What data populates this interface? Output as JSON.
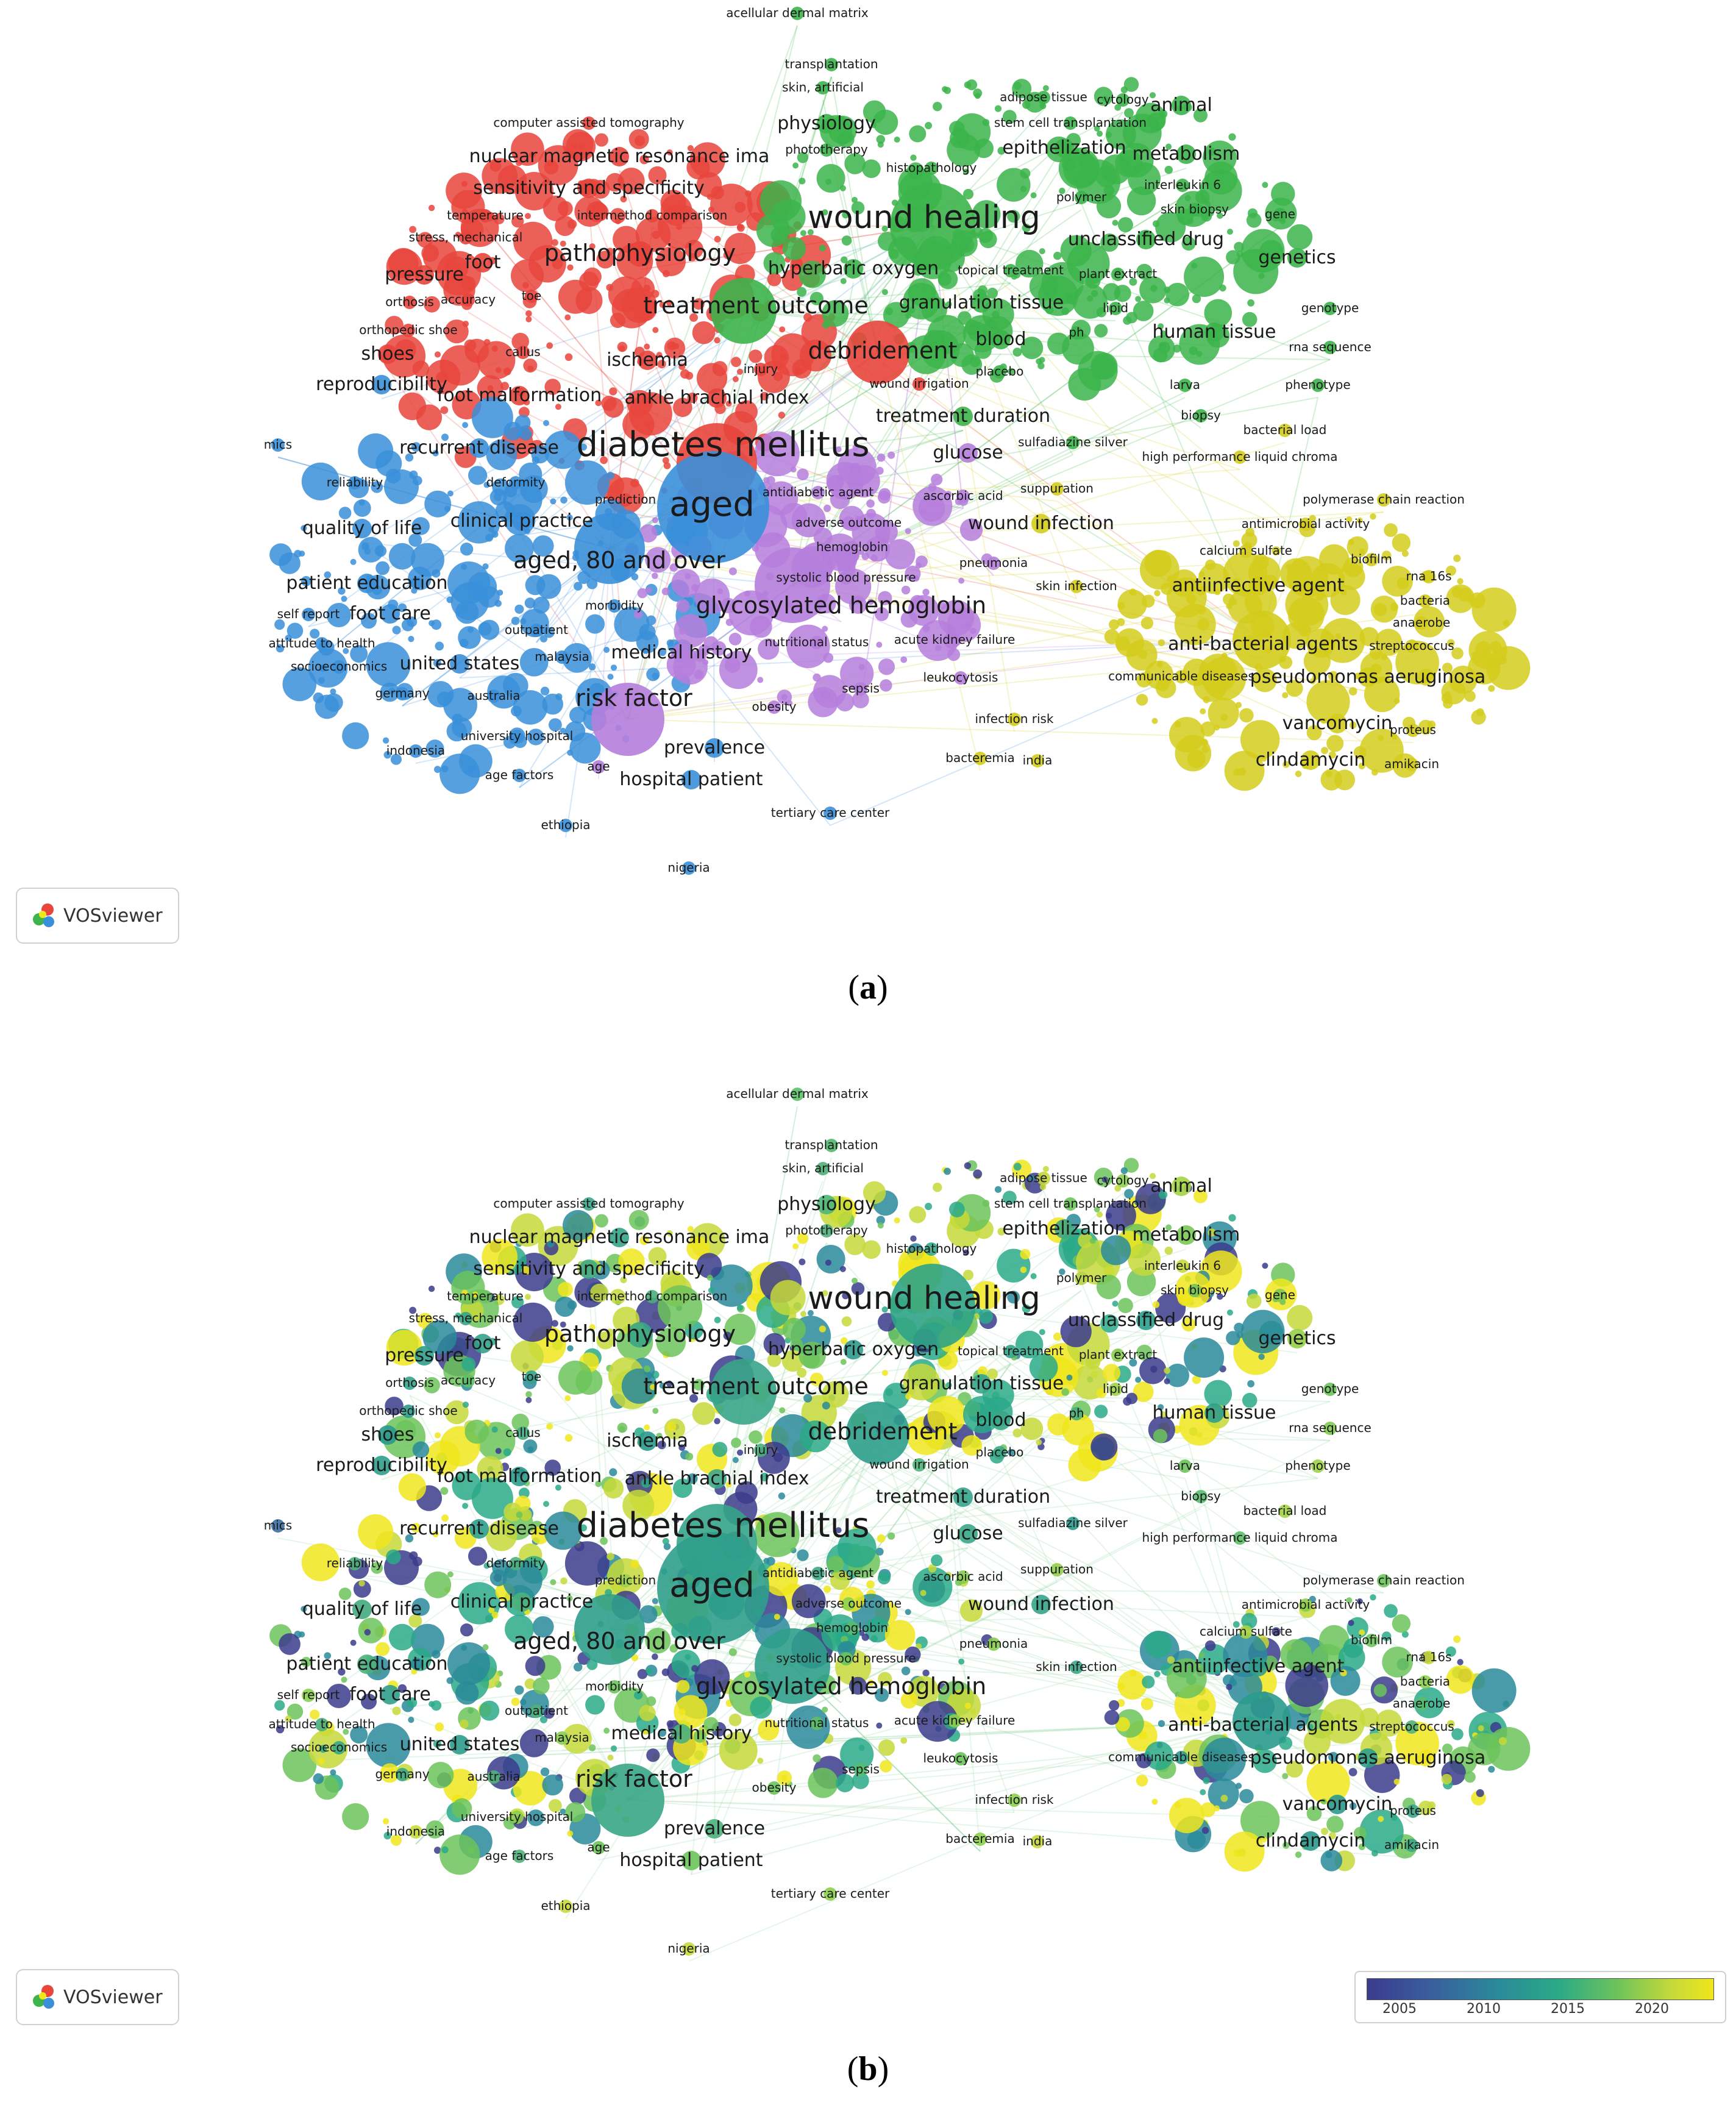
{
  "panel_a": {
    "caption_letter": "a",
    "logo_label": "VOSviewer",
    "cluster_colors": {
      "red": "#e8453c",
      "green": "#3cb44b",
      "blue": "#3a8fd9",
      "yellow": "#d4cc1c",
      "purple": "#b57edc"
    }
  },
  "panel_b": {
    "caption_letter": "b",
    "logo_label": "VOSviewer",
    "legend": {
      "ticks": [
        "2005",
        "2010",
        "2015",
        "2020"
      ],
      "colors": [
        "#3b3b8c",
        "#2a8a9a",
        "#2aa988",
        "#6cc35b",
        "#c6d93a",
        "#f0e61c"
      ]
    }
  },
  "keywords": [
    {
      "label": "acellular dermal matrix",
      "cluster": "green",
      "size": 1,
      "year_color": "#5cc26a"
    },
    {
      "label": "transplantation",
      "cluster": "green",
      "size": 1,
      "year_color": "#52b86e"
    },
    {
      "label": "skin, artificial",
      "cluster": "green",
      "size": 1,
      "year_color": "#4fae72"
    },
    {
      "label": "adipose tissue",
      "cluster": "green",
      "size": 1,
      "year_color": "#c3d73a"
    },
    {
      "label": "cytology",
      "cluster": "green",
      "size": 1,
      "year_color": "#8ccf4f"
    },
    {
      "label": "animal",
      "cluster": "green",
      "size": 2,
      "year_color": "#a4d444"
    },
    {
      "label": "computer assisted tomography",
      "cluster": "red",
      "size": 1,
      "year_color": "#3aa68a"
    },
    {
      "label": "physiology",
      "cluster": "green",
      "size": 2,
      "year_color": "#4db67a"
    },
    {
      "label": "stem cell transplantation",
      "cluster": "green",
      "size": 1,
      "year_color": "#6cc35b"
    },
    {
      "label": "phototherapy",
      "cluster": "green",
      "size": 1,
      "year_color": "#4cb07a"
    },
    {
      "label": "epithelization",
      "cluster": "green",
      "size": 2,
      "year_color": "#3fa782"
    },
    {
      "label": "metabolism",
      "cluster": "green",
      "size": 2,
      "year_color": "#79c656"
    },
    {
      "label": "nuclear magnetic resonance ima",
      "cluster": "red",
      "size": 2,
      "year_color": "#35a38a"
    },
    {
      "label": "histopathology",
      "cluster": "green",
      "size": 1,
      "year_color": "#3aa686"
    },
    {
      "label": "interleukin 6",
      "cluster": "green",
      "size": 1,
      "year_color": "#c6d93a"
    },
    {
      "label": "sensitivity and specificity",
      "cluster": "red",
      "size": 2,
      "year_color": "#3ea884"
    },
    {
      "label": "polymer",
      "cluster": "green",
      "size": 1,
      "year_color": "#b5d340"
    },
    {
      "label": "skin biopsy",
      "cluster": "green",
      "size": 1,
      "year_color": "#72c458"
    },
    {
      "label": "temperature",
      "cluster": "red",
      "size": 1,
      "year_color": "#6cc35b"
    },
    {
      "label": "intermethod comparison",
      "cluster": "red",
      "size": 1,
      "year_color": "#4aae7c"
    },
    {
      "label": "gene",
      "cluster": "green",
      "size": 1,
      "year_color": "#7fc852"
    },
    {
      "label": "wound healing",
      "cluster": "green",
      "size": 4,
      "year_color": "#2fa386"
    },
    {
      "label": "stress, mechanical",
      "cluster": "red",
      "size": 1,
      "year_color": "#37a488"
    },
    {
      "label": "unclassified drug",
      "cluster": "green",
      "size": 2,
      "year_color": "#2c9d8c"
    },
    {
      "label": "foot",
      "cluster": "red",
      "size": 2,
      "year_color": "#33a28a"
    },
    {
      "label": "pathophysiology",
      "cluster": "red",
      "size": 3,
      "year_color": "#3aa686"
    },
    {
      "label": "genetics",
      "cluster": "green",
      "size": 2,
      "year_color": "#96d049"
    },
    {
      "label": "pressure",
      "cluster": "red",
      "size": 2,
      "year_color": "#2f9f8b"
    },
    {
      "label": "hyperbaric oxygen",
      "cluster": "green",
      "size": 2,
      "year_color": "#2b9a8d"
    },
    {
      "label": "topical treatment",
      "cluster": "green",
      "size": 1,
      "year_color": "#34a389"
    },
    {
      "label": "plant extract",
      "cluster": "green",
      "size": 1,
      "year_color": "#8dcd4e"
    },
    {
      "label": "orthosis",
      "cluster": "red",
      "size": 1,
      "year_color": "#36a389"
    },
    {
      "label": "accuracy",
      "cluster": "red",
      "size": 1,
      "year_color": "#5fbf66"
    },
    {
      "label": "toe",
      "cluster": "red",
      "size": 1,
      "year_color": "#34a28a"
    },
    {
      "label": "treatment outcome",
      "cluster": "green",
      "size": 3,
      "year_color": "#38a588"
    },
    {
      "label": "granulation tissue",
      "cluster": "green",
      "size": 2,
      "year_color": "#37a489"
    },
    {
      "label": "lipid",
      "cluster": "green",
      "size": 1,
      "year_color": "#9dd147"
    },
    {
      "label": "genotype",
      "cluster": "green",
      "size": 1,
      "year_color": "#6cc35b"
    },
    {
      "label": "orthopedic shoe",
      "cluster": "red",
      "size": 1,
      "year_color": "#2d9c8c"
    },
    {
      "label": "blood",
      "cluster": "green",
      "size": 2,
      "year_color": "#3aa686"
    },
    {
      "label": "ph",
      "cluster": "green",
      "size": 1,
      "year_color": "#48ad7e"
    },
    {
      "label": "human tissue",
      "cluster": "green",
      "size": 2,
      "year_color": "#2e9f8b"
    },
    {
      "label": "rna sequence",
      "cluster": "green",
      "size": 1,
      "year_color": "#83ca51"
    },
    {
      "label": "shoes",
      "cluster": "red",
      "size": 2,
      "year_color": "#2a998e"
    },
    {
      "label": "callus",
      "cluster": "red",
      "size": 1,
      "year_color": "#41aa82"
    },
    {
      "label": "ischemia",
      "cluster": "red",
      "size": 2,
      "year_color": "#2b9b8d"
    },
    {
      "label": "debridement",
      "cluster": "red",
      "size": 3,
      "year_color": "#2e9e8b"
    },
    {
      "label": "injury",
      "cluster": "red",
      "size": 1,
      "year_color": "#4ab07c"
    },
    {
      "label": "placebo",
      "cluster": "green",
      "size": 1,
      "year_color": "#3aa686"
    },
    {
      "label": "reproducibility",
      "cluster": "blue",
      "size": 2,
      "year_color": "#2f9f8b"
    },
    {
      "label": "larva",
      "cluster": "green",
      "size": 1,
      "year_color": "#6cc35b"
    },
    {
      "label": "phenotype",
      "cluster": "green",
      "size": 1,
      "year_color": "#9dd147"
    },
    {
      "label": "foot malformation",
      "cluster": "red",
      "size": 2,
      "year_color": "#2c9c8c"
    },
    {
      "label": "wound irrigation",
      "cluster": "red",
      "size": 1,
      "year_color": "#4fb27a"
    },
    {
      "label": "ankle brachial index",
      "cluster": "red",
      "size": 2,
      "year_color": "#3ea884"
    },
    {
      "label": "biopsy",
      "cluster": "green",
      "size": 1,
      "year_color": "#58bc6e"
    },
    {
      "label": "treatment duration",
      "cluster": "green",
      "size": 2,
      "year_color": "#36a489"
    },
    {
      "label": "bacterial load",
      "cluster": "yellow",
      "size": 1,
      "year_color": "#a4d444"
    },
    {
      "label": "mics",
      "cluster": "blue",
      "size": 1,
      "year_color": "#3a6ea0"
    },
    {
      "label": "recurrent disease",
      "cluster": "blue",
      "size": 2,
      "year_color": "#2e9e8b"
    },
    {
      "label": "sulfadiazine silver",
      "cluster": "green",
      "size": 1,
      "year_color": "#2c9a8d"
    },
    {
      "label": "diabetes mellitus",
      "cluster": "red",
      "size": 5,
      "year_color": "#36a489"
    },
    {
      "label": "glucose",
      "cluster": "purple",
      "size": 2,
      "year_color": "#3aa686"
    },
    {
      "label": "high performance liquid chroma",
      "cluster": "yellow",
      "size": 1,
      "year_color": "#5cbf68"
    },
    {
      "label": "deformity",
      "cluster": "blue",
      "size": 1,
      "year_color": "#4cb07c"
    },
    {
      "label": "reliability",
      "cluster": "blue",
      "size": 1,
      "year_color": "#4fb27a"
    },
    {
      "label": "antidiabetic agent",
      "cluster": "purple",
      "size": 1,
      "year_color": "#3ba686"
    },
    {
      "label": "ascorbic acid",
      "cluster": "purple",
      "size": 1,
      "year_color": "#86cb50"
    },
    {
      "label": "suppuration",
      "cluster": "yellow",
      "size": 1,
      "year_color": "#93cf4b"
    },
    {
      "label": "prediction",
      "cluster": "red",
      "size": 1,
      "year_color": "#9dd147"
    },
    {
      "label": "aged",
      "cluster": "blue",
      "size": 5,
      "year_color": "#2f9f8b"
    },
    {
      "label": "polymerase chain reaction",
      "cluster": "yellow",
      "size": 1,
      "year_color": "#6cc35b"
    },
    {
      "label": "clinical practice",
      "cluster": "blue",
      "size": 2,
      "year_color": "#4ab07c"
    },
    {
      "label": "adverse outcome",
      "cluster": "purple",
      "size": 1,
      "year_color": "#8ccf4f"
    },
    {
      "label": "quality of life",
      "cluster": "blue",
      "size": 2,
      "year_color": "#42ab80"
    },
    {
      "label": "wound infection",
      "cluster": "yellow",
      "size": 2,
      "year_color": "#36a489"
    },
    {
      "label": "antimicrobial activity",
      "cluster": "yellow",
      "size": 1,
      "year_color": "#8dcd4e"
    },
    {
      "label": "hemoglobin",
      "cluster": "purple",
      "size": 1,
      "year_color": "#58bc6e"
    },
    {
      "label": "calcium sulfate",
      "cluster": "yellow",
      "size": 1,
      "year_color": "#a9d543"
    },
    {
      "label": "biofilm",
      "cluster": "yellow",
      "size": 1,
      "year_color": "#6cc35b"
    },
    {
      "label": "aged, 80 and over",
      "cluster": "blue",
      "size": 3,
      "year_color": "#2f9f8b"
    },
    {
      "label": "pneumonia",
      "cluster": "purple",
      "size": 1,
      "year_color": "#86cb50"
    },
    {
      "label": "rna 16s",
      "cluster": "yellow",
      "size": 1,
      "year_color": "#c6d93a"
    },
    {
      "label": "patient education",
      "cluster": "blue",
      "size": 2,
      "year_color": "#4cb07c"
    },
    {
      "label": "systolic blood pressure",
      "cluster": "purple",
      "size": 1,
      "year_color": "#6cc35b"
    },
    {
      "label": "skin infection",
      "cluster": "yellow",
      "size": 1,
      "year_color": "#3ba686"
    },
    {
      "label": "antiinfective agent",
      "cluster": "yellow",
      "size": 2,
      "year_color": "#2f9f8b"
    },
    {
      "label": "bacteria",
      "cluster": "yellow",
      "size": 1,
      "year_color": "#8ccf4f"
    },
    {
      "label": "morbidity",
      "cluster": "blue",
      "size": 1,
      "year_color": "#6cc35b"
    },
    {
      "label": "self report",
      "cluster": "blue",
      "size": 1,
      "year_color": "#8ccf4f"
    },
    {
      "label": "foot care",
      "cluster": "blue",
      "size": 2,
      "year_color": "#2f9f8b"
    },
    {
      "label": "glycosylated hemoglobin",
      "cluster": "purple",
      "size": 3,
      "year_color": "#2f9f8b"
    },
    {
      "label": "anaerobe",
      "cluster": "yellow",
      "size": 1,
      "year_color": "#58bc6e"
    },
    {
      "label": "outpatient",
      "cluster": "blue",
      "size": 1,
      "year_color": "#4fb27a"
    },
    {
      "label": "acute kidney failure",
      "cluster": "purple",
      "size": 1,
      "year_color": "#8ccf4f"
    },
    {
      "label": "attitude to health",
      "cluster": "blue",
      "size": 1,
      "year_color": "#48ad7e"
    },
    {
      "label": "nutritional status",
      "cluster": "purple",
      "size": 1,
      "year_color": "#5fbf66"
    },
    {
      "label": "anti-bacterial agents",
      "cluster": "yellow",
      "size": 2,
      "year_color": "#2b9b8d"
    },
    {
      "label": "streptococcus",
      "cluster": "yellow",
      "size": 1,
      "year_color": "#4fb27a"
    },
    {
      "label": "malaysia",
      "cluster": "blue",
      "size": 1,
      "year_color": "#8ccf4f"
    },
    {
      "label": "medical history",
      "cluster": "purple",
      "size": 2,
      "year_color": "#4cb07c"
    },
    {
      "label": "united states",
      "cluster": "blue",
      "size": 2,
      "year_color": "#2c9c8c"
    },
    {
      "label": "socioeconomics",
      "cluster": "blue",
      "size": 1,
      "year_color": "#3aa686"
    },
    {
      "label": "communicable diseases",
      "cluster": "yellow",
      "size": 1,
      "year_color": "#2b9b8d"
    },
    {
      "label": "pseudomonas aeruginosa",
      "cluster": "yellow",
      "size": 2,
      "year_color": "#2f9f8b"
    },
    {
      "label": "leukocytosis",
      "cluster": "purple",
      "size": 1,
      "year_color": "#6cc35b"
    },
    {
      "label": "sepsis",
      "cluster": "purple",
      "size": 1,
      "year_color": "#58bc6e"
    },
    {
      "label": "germany",
      "cluster": "blue",
      "size": 1,
      "year_color": "#3aa686"
    },
    {
      "label": "australia",
      "cluster": "blue",
      "size": 1,
      "year_color": "#4fb27a"
    },
    {
      "label": "risk factor",
      "cluster": "purple",
      "size": 3,
      "year_color": "#3aa686"
    },
    {
      "label": "obesity",
      "cluster": "purple",
      "size": 1,
      "year_color": "#6cc35b"
    },
    {
      "label": "infection risk",
      "cluster": "yellow",
      "size": 1,
      "year_color": "#8ccf4f"
    },
    {
      "label": "vancomycin",
      "cluster": "yellow",
      "size": 2,
      "year_color": "#2a998e"
    },
    {
      "label": "proteus",
      "cluster": "yellow",
      "size": 1,
      "year_color": "#3aa686"
    },
    {
      "label": "university hospital",
      "cluster": "blue",
      "size": 1,
      "year_color": "#8ccf4f"
    },
    {
      "label": "prevalence",
      "cluster": "blue",
      "size": 2,
      "year_color": "#4cb07c"
    },
    {
      "label": "indonesia",
      "cluster": "blue",
      "size": 1,
      "year_color": "#c6d93a"
    },
    {
      "label": "bacteremia",
      "cluster": "yellow",
      "size": 1,
      "year_color": "#8ccf4f"
    },
    {
      "label": "india",
      "cluster": "yellow",
      "size": 1,
      "year_color": "#c3d73a"
    },
    {
      "label": "clindamycin",
      "cluster": "yellow",
      "size": 2,
      "year_color": "#2a998e"
    },
    {
      "label": "amikacin",
      "cluster": "yellow",
      "size": 1,
      "year_color": "#3aa686"
    },
    {
      "label": "age",
      "cluster": "purple",
      "size": 1,
      "year_color": "#6cc35b"
    },
    {
      "label": "age factors",
      "cluster": "blue",
      "size": 1,
      "year_color": "#4fb27a"
    },
    {
      "label": "hospital patient",
      "cluster": "blue",
      "size": 2,
      "year_color": "#6cc35b"
    },
    {
      "label": "tertiary care center",
      "cluster": "blue",
      "size": 1,
      "year_color": "#8ccf4f"
    },
    {
      "label": "ethiopia",
      "cluster": "blue",
      "size": 1,
      "year_color": "#c6d93a"
    },
    {
      "label": "nigeria",
      "cluster": "blue",
      "size": 1,
      "year_color": "#c6d93a"
    }
  ]
}
